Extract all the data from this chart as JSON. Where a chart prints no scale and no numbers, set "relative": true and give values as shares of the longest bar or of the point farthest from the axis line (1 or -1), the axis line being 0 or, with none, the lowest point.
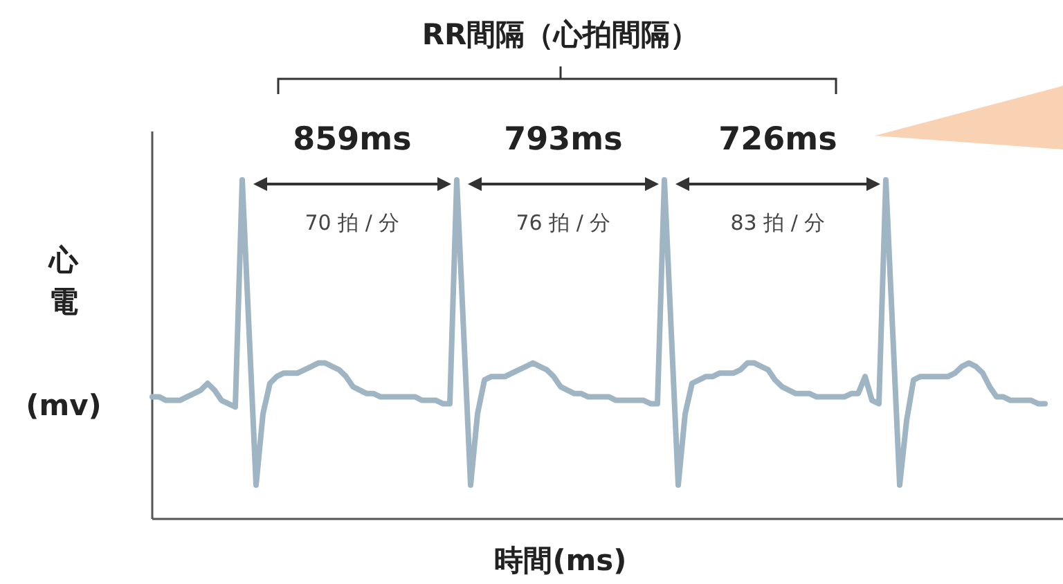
{
  "chart_data": {
    "type": "line",
    "title": "RR間隔（心拍間隔）",
    "xlabel": "時間(ms)",
    "ylabel": "心電(mv)",
    "relative": true,
    "annotations": [
      "859ms",
      "793ms",
      "726ms",
      "70 拍 / 分",
      "76 拍 / 分",
      "83 拍 / 分"
    ],
    "categories": [
      null,
      null,
      null,
      null,
      null,
      null,
      null,
      null,
      null,
      null,
      null,
      null,
      null,
      null,
      null,
      null,
      null,
      null,
      null,
      null,
      null,
      null,
      null,
      null,
      null,
      null,
      null,
      null,
      null,
      null,
      null,
      null,
      null,
      null,
      null,
      null,
      null,
      null,
      null,
      null,
      null,
      null,
      null,
      null,
      null,
      null,
      null,
      null,
      null,
      null,
      null,
      null,
      null,
      null,
      null,
      null,
      null,
      null,
      null,
      null,
      null,
      null,
      null,
      null,
      null,
      null,
      null,
      null,
      null,
      null,
      null,
      null,
      null,
      null,
      null,
      null,
      null,
      null,
      null,
      null,
      null,
      null,
      null,
      null,
      null,
      null,
      null,
      null,
      null,
      null,
      null,
      null,
      null,
      null,
      null,
      null,
      null,
      null,
      null,
      null,
      null,
      null,
      null,
      null,
      null,
      null,
      null,
      null,
      null,
      null,
      null,
      null,
      null,
      null,
      null,
      null,
      null,
      null,
      null,
      null,
      null,
      null,
      null,
      null,
      null,
      null,
      null,
      null,
      null,
      null
    ],
    "series": [
      {
        "color": "#9fb5c4",
        "values": [
          0.36,
          0.36,
          0.35,
          0.35,
          0.35,
          0.36,
          0.37,
          0.38,
          0.4,
          0.38,
          0.35,
          0.34,
          0.33,
          1.0,
          0.55,
          0.1,
          0.31,
          0.4,
          0.42,
          0.43,
          0.43,
          0.43,
          0.44,
          0.45,
          0.46,
          0.46,
          0.45,
          0.44,
          0.42,
          0.39,
          0.38,
          0.37,
          0.37,
          0.36,
          0.36,
          0.36,
          0.36,
          0.36,
          0.36,
          0.35,
          0.35,
          0.35,
          0.34,
          0.34,
          1.0,
          0.55,
          0.1,
          0.31,
          0.41,
          0.42,
          0.42,
          0.42,
          0.43,
          0.44,
          0.45,
          0.46,
          0.45,
          0.44,
          0.42,
          0.39,
          0.38,
          0.37,
          0.37,
          0.36,
          0.36,
          0.36,
          0.36,
          0.35,
          0.35,
          0.35,
          0.35,
          0.35,
          0.34,
          0.34,
          1.0,
          0.55,
          0.1,
          0.31,
          0.4,
          0.41,
          0.42,
          0.42,
          0.43,
          0.43,
          0.43,
          0.44,
          0.46,
          0.46,
          0.45,
          0.44,
          0.41,
          0.39,
          0.38,
          0.37,
          0.37,
          0.37,
          0.36,
          0.36,
          0.36,
          0.36,
          0.36,
          0.37,
          0.37,
          0.42,
          0.35,
          0.34,
          1.0,
          0.55,
          0.1,
          0.29,
          0.41,
          0.42,
          0.42,
          0.42,
          0.42,
          0.42,
          0.43,
          0.45,
          0.46,
          0.45,
          0.43,
          0.39,
          0.36,
          0.36,
          0.35,
          0.35,
          0.35,
          0.35,
          0.34,
          0.34
        ]
      }
    ]
  }
}
